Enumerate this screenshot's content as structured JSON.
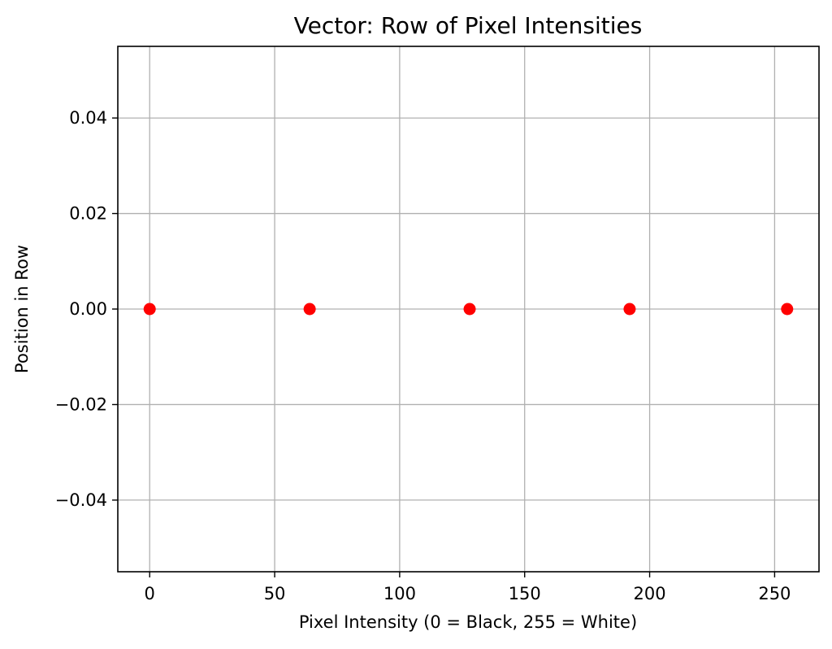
{
  "chart_data": {
    "type": "scatter",
    "title": "Vector: Row of Pixel Intensities",
    "xlabel": "Pixel Intensity (0 = Black, 255 = White)",
    "ylabel": "Position in Row",
    "xlim": [
      -12.75,
      267.75
    ],
    "ylim": [
      -0.055,
      0.055
    ],
    "x_ticks": [
      0,
      50,
      100,
      150,
      200,
      250
    ],
    "x_tick_labels": [
      "0",
      "50",
      "100",
      "150",
      "200",
      "250"
    ],
    "y_ticks": [
      0.04,
      0.02,
      0.0,
      -0.02,
      -0.04
    ],
    "y_tick_labels": [
      "0.04",
      "0.02",
      "0.00",
      "−0.02",
      "−0.04"
    ],
    "grid": true,
    "series": [
      {
        "color": "#ff0000",
        "marker": "circle",
        "x": [
          0,
          64,
          128,
          192,
          255
        ],
        "y": [
          0,
          0,
          0,
          0,
          0
        ]
      }
    ]
  }
}
